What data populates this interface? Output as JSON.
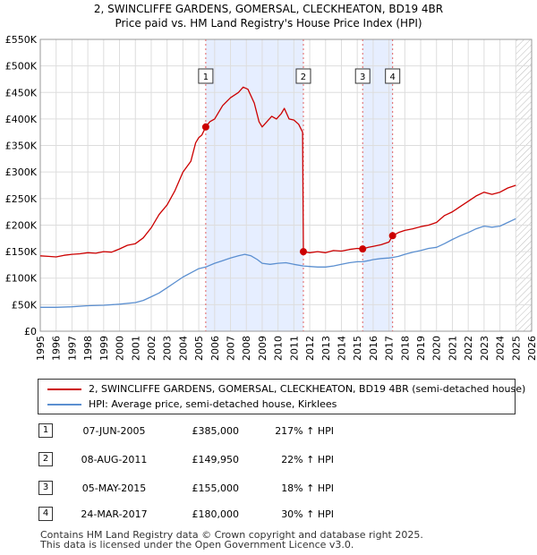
{
  "title_line1": "2, SWINCLIFFE GARDENS, GOMERSAL, CLECKHEATON, BD19 4BR",
  "title_line2": "Price paid vs. HM Land Registry's House Price Index (HPI)",
  "colors": {
    "property": "#cc0000",
    "hpi": "#5b8fd0",
    "shade": "#e6eeff",
    "vline": "#e06060",
    "grid": "#dddddd"
  },
  "chart_data": {
    "type": "line",
    "ylim": [
      0,
      550000
    ],
    "xlim": [
      1995,
      2026
    ],
    "y_ticks": [
      {
        "value": 0,
        "label": "£0"
      },
      {
        "value": 50000,
        "label": "£50K"
      },
      {
        "value": 100000,
        "label": "£100K"
      },
      {
        "value": 150000,
        "label": "£150K"
      },
      {
        "value": 200000,
        "label": "£200K"
      },
      {
        "value": 250000,
        "label": "£250K"
      },
      {
        "value": 300000,
        "label": "£300K"
      },
      {
        "value": 350000,
        "label": "£350K"
      },
      {
        "value": 400000,
        "label": "£400K"
      },
      {
        "value": 450000,
        "label": "£450K"
      },
      {
        "value": 500000,
        "label": "£500K"
      },
      {
        "value": 550000,
        "label": "£550K"
      }
    ],
    "x_ticks": [
      "1995",
      "1996",
      "1997",
      "1998",
      "1999",
      "2000",
      "2001",
      "2002",
      "2003",
      "2004",
      "2005",
      "2006",
      "2007",
      "2008",
      "2009",
      "2010",
      "2011",
      "2012",
      "2013",
      "2014",
      "2015",
      "2016",
      "2017",
      "2018",
      "2019",
      "2020",
      "2021",
      "2022",
      "2023",
      "2024",
      "2025",
      "2026"
    ],
    "shaded_ranges": [
      [
        2005.44,
        2011.6
      ],
      [
        2015.34,
        2017.23
      ]
    ],
    "data_end": 2025.0,
    "series": [
      {
        "name": "2, SWINCLIFFE GARDENS, GOMERSAL, CLECKHEATON, BD19 4BR (semi-detached house)",
        "points": [
          [
            1995.0,
            142000
          ],
          [
            1995.5,
            141000
          ],
          [
            1996.0,
            140000
          ],
          [
            1996.5,
            143000
          ],
          [
            1997.0,
            145000
          ],
          [
            1997.5,
            146000
          ],
          [
            1998.0,
            148000
          ],
          [
            1998.5,
            147000
          ],
          [
            1999.0,
            150000
          ],
          [
            1999.5,
            149000
          ],
          [
            2000.0,
            155000
          ],
          [
            2000.5,
            162000
          ],
          [
            2001.0,
            165000
          ],
          [
            2001.5,
            176000
          ],
          [
            2002.0,
            195000
          ],
          [
            2002.5,
            220000
          ],
          [
            2003.0,
            238000
          ],
          [
            2003.5,
            265000
          ],
          [
            2004.0,
            300000
          ],
          [
            2004.5,
            320000
          ],
          [
            2004.8,
            355000
          ],
          [
            2005.0,
            365000
          ],
          [
            2005.2,
            370000
          ],
          [
            2005.44,
            385000
          ],
          [
            2005.7,
            395000
          ],
          [
            2006.0,
            400000
          ],
          [
            2006.5,
            425000
          ],
          [
            2007.0,
            440000
          ],
          [
            2007.5,
            450000
          ],
          [
            2007.8,
            460000
          ],
          [
            2008.1,
            456000
          ],
          [
            2008.5,
            430000
          ],
          [
            2008.8,
            395000
          ],
          [
            2009.0,
            385000
          ],
          [
            2009.3,
            395000
          ],
          [
            2009.6,
            405000
          ],
          [
            2009.9,
            400000
          ],
          [
            2010.2,
            410000
          ],
          [
            2010.4,
            420000
          ],
          [
            2010.7,
            400000
          ],
          [
            2011.0,
            398000
          ],
          [
            2011.3,
            390000
          ],
          [
            2011.55,
            375000
          ],
          [
            2011.6,
            149950
          ],
          [
            2012.0,
            148000
          ],
          [
            2012.5,
            150000
          ],
          [
            2013.0,
            148000
          ],
          [
            2013.5,
            152000
          ],
          [
            2014.0,
            151000
          ],
          [
            2014.5,
            154000
          ],
          [
            2015.0,
            156000
          ],
          [
            2015.34,
            155000
          ],
          [
            2015.7,
            158000
          ],
          [
            2016.0,
            160000
          ],
          [
            2016.5,
            163000
          ],
          [
            2017.0,
            168000
          ],
          [
            2017.23,
            180000
          ],
          [
            2017.6,
            186000
          ],
          [
            2018.0,
            190000
          ],
          [
            2018.5,
            193000
          ],
          [
            2019.0,
            197000
          ],
          [
            2019.5,
            200000
          ],
          [
            2020.0,
            205000
          ],
          [
            2020.5,
            218000
          ],
          [
            2021.0,
            225000
          ],
          [
            2021.5,
            235000
          ],
          [
            2022.0,
            245000
          ],
          [
            2022.5,
            255000
          ],
          [
            2023.0,
            262000
          ],
          [
            2023.5,
            258000
          ],
          [
            2024.0,
            262000
          ],
          [
            2024.5,
            270000
          ],
          [
            2025.0,
            275000
          ]
        ]
      },
      {
        "name": "HPI: Average price, semi-detached house, Kirklees",
        "points": [
          [
            1995.0,
            45000
          ],
          [
            1996.0,
            45000
          ],
          [
            1997.0,
            46000
          ],
          [
            1998.0,
            48000
          ],
          [
            1999.0,
            49000
          ],
          [
            2000.0,
            51000
          ],
          [
            2001.0,
            54000
          ],
          [
            2001.5,
            58000
          ],
          [
            2002.0,
            65000
          ],
          [
            2002.5,
            72000
          ],
          [
            2003.0,
            82000
          ],
          [
            2003.5,
            92000
          ],
          [
            2004.0,
            102000
          ],
          [
            2004.5,
            110000
          ],
          [
            2005.0,
            118000
          ],
          [
            2005.44,
            121000
          ],
          [
            2006.0,
            128000
          ],
          [
            2006.5,
            133000
          ],
          [
            2007.0,
            138000
          ],
          [
            2007.5,
            142000
          ],
          [
            2007.9,
            145000
          ],
          [
            2008.3,
            142000
          ],
          [
            2008.7,
            135000
          ],
          [
            2009.0,
            128000
          ],
          [
            2009.5,
            126000
          ],
          [
            2010.0,
            128000
          ],
          [
            2010.5,
            129000
          ],
          [
            2011.0,
            126000
          ],
          [
            2011.6,
            123000
          ],
          [
            2012.0,
            122000
          ],
          [
            2012.5,
            121000
          ],
          [
            2013.0,
            121000
          ],
          [
            2013.5,
            123000
          ],
          [
            2014.0,
            126000
          ],
          [
            2014.5,
            129000
          ],
          [
            2015.0,
            131000
          ],
          [
            2015.34,
            131000
          ],
          [
            2015.7,
            133000
          ],
          [
            2016.0,
            135000
          ],
          [
            2016.5,
            137000
          ],
          [
            2017.0,
            138000
          ],
          [
            2017.23,
            139000
          ],
          [
            2017.6,
            141000
          ],
          [
            2018.0,
            145000
          ],
          [
            2018.5,
            149000
          ],
          [
            2019.0,
            152000
          ],
          [
            2019.5,
            156000
          ],
          [
            2020.0,
            158000
          ],
          [
            2020.5,
            165000
          ],
          [
            2021.0,
            173000
          ],
          [
            2021.5,
            180000
          ],
          [
            2022.0,
            186000
          ],
          [
            2022.5,
            193000
          ],
          [
            2023.0,
            198000
          ],
          [
            2023.5,
            196000
          ],
          [
            2024.0,
            198000
          ],
          [
            2024.5,
            205000
          ],
          [
            2025.0,
            212000
          ]
        ]
      }
    ],
    "markers": [
      {
        "label": "1",
        "x": 2005.44,
        "y": 385000
      },
      {
        "label": "2",
        "x": 2011.6,
        "y": 149950
      },
      {
        "label": "3",
        "x": 2015.34,
        "y": 155000
      },
      {
        "label": "4",
        "x": 2017.23,
        "y": 180000
      }
    ]
  },
  "legend": {
    "property": "2, SWINCLIFFE GARDENS, GOMERSAL, CLECKHEATON, BD19 4BR (semi-detached house)",
    "hpi": "HPI: Average price, semi-detached house, Kirklees"
  },
  "transactions": [
    {
      "num": "1",
      "date": "07-JUN-2005",
      "price": "£385,000",
      "hpi": "217% ↑ HPI"
    },
    {
      "num": "2",
      "date": "08-AUG-2011",
      "price": "£149,950",
      "hpi": "22% ↑ HPI"
    },
    {
      "num": "3",
      "date": "05-MAY-2015",
      "price": "£155,000",
      "hpi": "18% ↑ HPI"
    },
    {
      "num": "4",
      "date": "24-MAR-2017",
      "price": "£180,000",
      "hpi": "30% ↑ HPI"
    }
  ],
  "footer_line1": "Contains HM Land Registry data © Crown copyright and database right 2025.",
  "footer_line2": "This data is licensed under the Open Government Licence v3.0."
}
